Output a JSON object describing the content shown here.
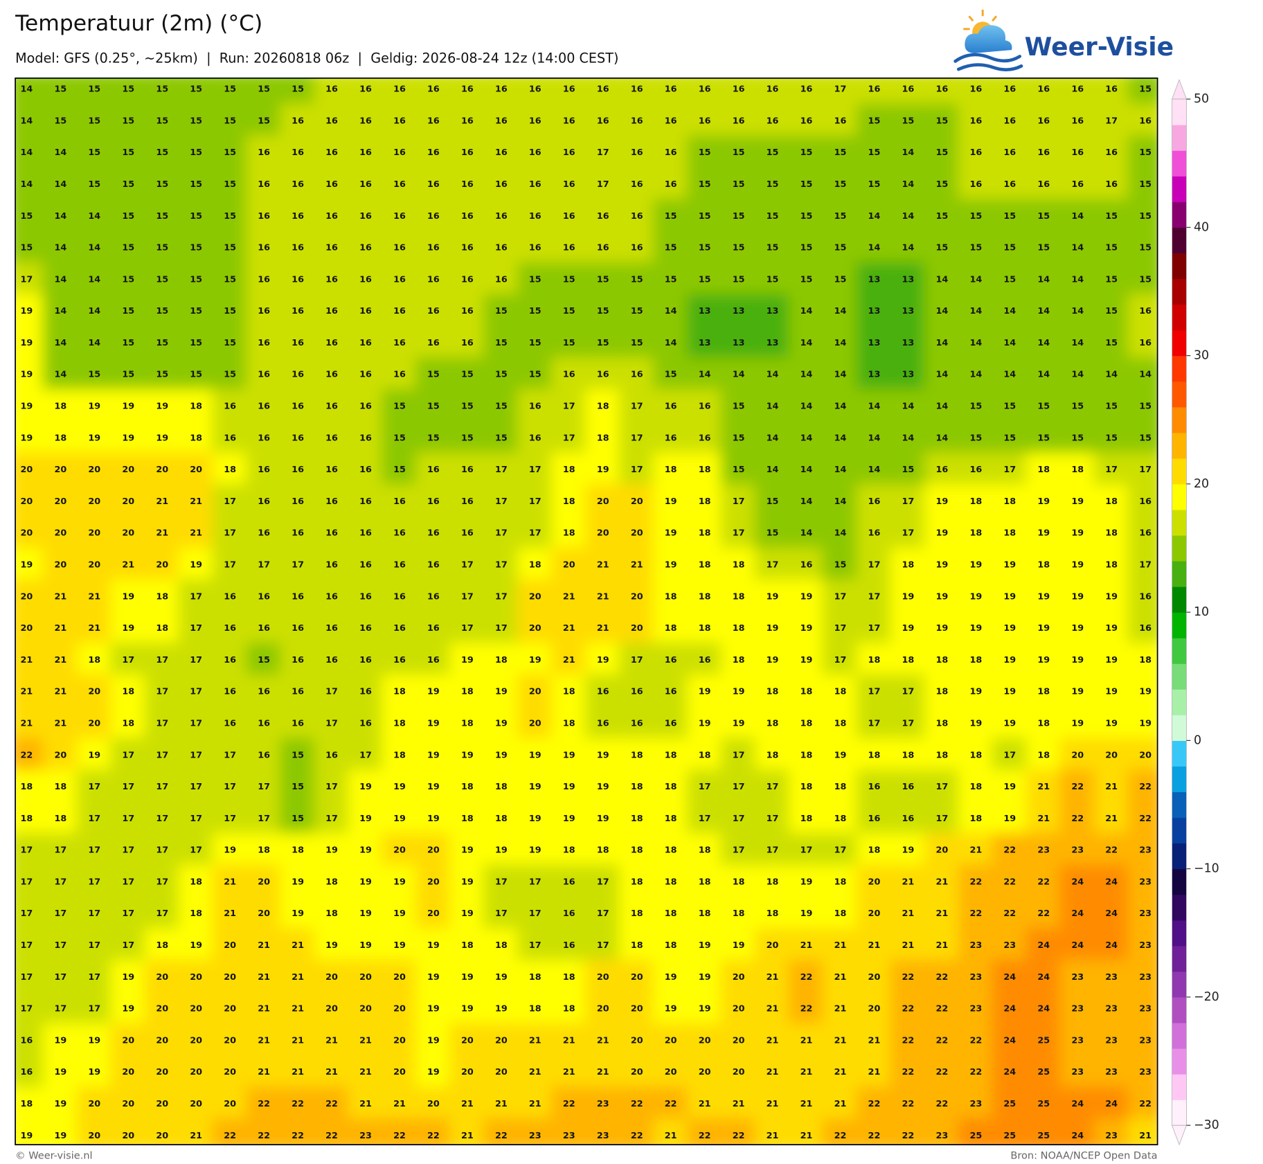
{
  "header": {
    "title": "Temperatuur (2m) (°C)",
    "subtitle": "Model: GFS (0.25°, ~25km)  |  Run: 20260818 06z  |  Geldig: 2026-08-24 12z (14:00 CEST)",
    "logo": "Weer-Visie"
  },
  "map": {
    "rows": [
      [
        14,
        15,
        15,
        15,
        15,
        15,
        15,
        15,
        15,
        16,
        16,
        16,
        16,
        16,
        16,
        16,
        16,
        16,
        16,
        16,
        16,
        16,
        16,
        16,
        17,
        16,
        16,
        16,
        16,
        16,
        16,
        16,
        16,
        15
      ],
      [
        14,
        15,
        15,
        15,
        15,
        15,
        15,
        15,
        16,
        16,
        16,
        16,
        16,
        16,
        16,
        16,
        16,
        16,
        16,
        16,
        16,
        16,
        16,
        16,
        16,
        15,
        15,
        15,
        16,
        16,
        16,
        16,
        17,
        16
      ],
      [
        14,
        14,
        15,
        15,
        15,
        15,
        15,
        16,
        16,
        16,
        16,
        16,
        16,
        16,
        16,
        16,
        16,
        17,
        16,
        16,
        15,
        15,
        15,
        15,
        15,
        15,
        14,
        15,
        16,
        16,
        16,
        16,
        16,
        15
      ],
      [
        14,
        14,
        15,
        15,
        15,
        15,
        15,
        16,
        16,
        16,
        16,
        16,
        16,
        16,
        16,
        16,
        16,
        17,
        16,
        16,
        15,
        15,
        15,
        15,
        15,
        15,
        14,
        15,
        16,
        16,
        16,
        16,
        16,
        15
      ],
      [
        15,
        14,
        14,
        15,
        15,
        15,
        15,
        16,
        16,
        16,
        16,
        16,
        16,
        16,
        16,
        16,
        16,
        16,
        16,
        15,
        15,
        15,
        15,
        15,
        15,
        14,
        14,
        15,
        15,
        15,
        15,
        14,
        15,
        15
      ],
      [
        15,
        14,
        14,
        15,
        15,
        15,
        15,
        16,
        16,
        16,
        16,
        16,
        16,
        16,
        16,
        16,
        16,
        16,
        16,
        15,
        15,
        15,
        15,
        15,
        15,
        14,
        14,
        15,
        15,
        15,
        15,
        14,
        15,
        15
      ],
      [
        17,
        14,
        14,
        15,
        15,
        15,
        15,
        16,
        16,
        16,
        16,
        16,
        16,
        16,
        16,
        15,
        15,
        15,
        15,
        15,
        15,
        15,
        15,
        15,
        15,
        13,
        13,
        14,
        14,
        15,
        14,
        14,
        15,
        15
      ],
      [
        19,
        14,
        14,
        15,
        15,
        15,
        15,
        16,
        16,
        16,
        16,
        16,
        16,
        16,
        15,
        15,
        15,
        15,
        15,
        14,
        13,
        13,
        13,
        14,
        14,
        13,
        13,
        14,
        14,
        14,
        14,
        14,
        15,
        16
      ],
      [
        19,
        14,
        14,
        15,
        15,
        15,
        15,
        16,
        16,
        16,
        16,
        16,
        16,
        16,
        15,
        15,
        15,
        15,
        15,
        14,
        13,
        13,
        13,
        14,
        14,
        13,
        13,
        14,
        14,
        14,
        14,
        14,
        15,
        16
      ],
      [
        19,
        14,
        15,
        15,
        15,
        15,
        15,
        16,
        16,
        16,
        16,
        16,
        15,
        15,
        15,
        15,
        16,
        16,
        16,
        15,
        14,
        14,
        14,
        14,
        14,
        13,
        13,
        14,
        14,
        14,
        14,
        14,
        14,
        14
      ],
      [
        19,
        18,
        19,
        19,
        19,
        18,
        16,
        16,
        16,
        16,
        16,
        15,
        15,
        15,
        15,
        16,
        17,
        18,
        17,
        16,
        16,
        15,
        14,
        14,
        14,
        14,
        14,
        14,
        15,
        15,
        15,
        15,
        15,
        15
      ],
      [
        19,
        18,
        19,
        19,
        19,
        18,
        16,
        16,
        16,
        16,
        16,
        15,
        15,
        15,
        15,
        16,
        17,
        18,
        17,
        16,
        16,
        15,
        14,
        14,
        14,
        14,
        14,
        14,
        15,
        15,
        15,
        15,
        15,
        15
      ],
      [
        20,
        20,
        20,
        20,
        20,
        20,
        18,
        16,
        16,
        16,
        16,
        15,
        16,
        16,
        17,
        17,
        18,
        19,
        17,
        18,
        18,
        15,
        14,
        14,
        14,
        14,
        15,
        16,
        16,
        17,
        18,
        18,
        17,
        17
      ],
      [
        20,
        20,
        20,
        20,
        21,
        21,
        17,
        16,
        16,
        16,
        16,
        16,
        16,
        16,
        17,
        17,
        18,
        20,
        20,
        19,
        18,
        17,
        15,
        14,
        14,
        16,
        17,
        19,
        18,
        18,
        19,
        19,
        18,
        16
      ],
      [
        20,
        20,
        20,
        20,
        21,
        21,
        17,
        16,
        16,
        16,
        16,
        16,
        16,
        16,
        17,
        17,
        18,
        20,
        20,
        19,
        18,
        17,
        15,
        14,
        14,
        16,
        17,
        19,
        18,
        18,
        19,
        19,
        18,
        16
      ],
      [
        19,
        20,
        20,
        21,
        20,
        19,
        17,
        17,
        17,
        16,
        16,
        16,
        16,
        17,
        17,
        18,
        20,
        21,
        21,
        19,
        18,
        18,
        17,
        16,
        15,
        17,
        18,
        19,
        19,
        19,
        18,
        19,
        18,
        17
      ],
      [
        20,
        21,
        21,
        19,
        18,
        17,
        16,
        16,
        16,
        16,
        16,
        16,
        16,
        17,
        17,
        20,
        21,
        21,
        20,
        18,
        18,
        18,
        19,
        19,
        17,
        17,
        19,
        19,
        19,
        19,
        19,
        19,
        19,
        16
      ],
      [
        20,
        21,
        21,
        19,
        18,
        17,
        16,
        16,
        16,
        16,
        16,
        16,
        16,
        17,
        17,
        20,
        21,
        21,
        20,
        18,
        18,
        18,
        19,
        19,
        17,
        17,
        19,
        19,
        19,
        19,
        19,
        19,
        19,
        16
      ],
      [
        21,
        21,
        18,
        17,
        17,
        17,
        16,
        15,
        16,
        16,
        16,
        16,
        16,
        19,
        18,
        19,
        21,
        19,
        17,
        16,
        16,
        18,
        19,
        19,
        17,
        18,
        18,
        18,
        18,
        19,
        19,
        19,
        19,
        18
      ],
      [
        21,
        21,
        20,
        18,
        17,
        17,
        16,
        16,
        16,
        17,
        16,
        18,
        19,
        18,
        19,
        20,
        18,
        16,
        16,
        16,
        19,
        19,
        18,
        18,
        18,
        17,
        17,
        18,
        19,
        19,
        18,
        19,
        19,
        19
      ],
      [
        21,
        21,
        20,
        18,
        17,
        17,
        16,
        16,
        16,
        17,
        16,
        18,
        19,
        18,
        19,
        20,
        18,
        16,
        16,
        16,
        19,
        19,
        18,
        18,
        18,
        17,
        17,
        18,
        19,
        19,
        18,
        19,
        19,
        19
      ],
      [
        22,
        20,
        19,
        17,
        17,
        17,
        17,
        16,
        15,
        16,
        17,
        18,
        19,
        19,
        19,
        19,
        19,
        19,
        18,
        18,
        18,
        17,
        18,
        18,
        19,
        18,
        18,
        18,
        18,
        17,
        18,
        20,
        20,
        20
      ],
      [
        18,
        18,
        17,
        17,
        17,
        17,
        17,
        17,
        15,
        17,
        19,
        19,
        19,
        18,
        18,
        19,
        19,
        19,
        18,
        18,
        17,
        17,
        17,
        18,
        18,
        16,
        16,
        17,
        18,
        19,
        21,
        22,
        21,
        22
      ],
      [
        18,
        18,
        17,
        17,
        17,
        17,
        17,
        17,
        15,
        17,
        19,
        19,
        19,
        18,
        18,
        19,
        19,
        19,
        18,
        18,
        17,
        17,
        17,
        18,
        18,
        16,
        16,
        17,
        18,
        19,
        21,
        22,
        21,
        22
      ],
      [
        17,
        17,
        17,
        17,
        17,
        17,
        19,
        18,
        18,
        19,
        19,
        20,
        20,
        19,
        19,
        19,
        18,
        18,
        18,
        18,
        18,
        17,
        17,
        17,
        17,
        18,
        19,
        20,
        21,
        22,
        23,
        23,
        22,
        23
      ],
      [
        17,
        17,
        17,
        17,
        17,
        18,
        21,
        20,
        19,
        18,
        19,
        19,
        20,
        19,
        17,
        17,
        16,
        17,
        18,
        18,
        18,
        18,
        18,
        19,
        18,
        20,
        21,
        21,
        22,
        22,
        22,
        24,
        24,
        23
      ],
      [
        17,
        17,
        17,
        17,
        17,
        18,
        21,
        20,
        19,
        18,
        19,
        19,
        20,
        19,
        17,
        17,
        16,
        17,
        18,
        18,
        18,
        18,
        18,
        19,
        18,
        20,
        21,
        21,
        22,
        22,
        22,
        24,
        24,
        23
      ],
      [
        17,
        17,
        17,
        17,
        18,
        19,
        20,
        21,
        21,
        19,
        19,
        19,
        19,
        18,
        18,
        17,
        16,
        17,
        18,
        18,
        19,
        19,
        20,
        21,
        21,
        21,
        21,
        21,
        23,
        23,
        24,
        24,
        24,
        23
      ],
      [
        17,
        17,
        17,
        19,
        20,
        20,
        20,
        21,
        21,
        20,
        20,
        20,
        19,
        19,
        19,
        18,
        18,
        20,
        20,
        19,
        19,
        20,
        21,
        22,
        21,
        20,
        22,
        22,
        23,
        24,
        24,
        23,
        23,
        23
      ],
      [
        17,
        17,
        17,
        19,
        20,
        20,
        20,
        21,
        21,
        20,
        20,
        20,
        19,
        19,
        19,
        18,
        18,
        20,
        20,
        19,
        19,
        20,
        21,
        22,
        21,
        20,
        22,
        22,
        23,
        24,
        24,
        23,
        23,
        23
      ],
      [
        16,
        19,
        19,
        20,
        20,
        20,
        20,
        21,
        21,
        21,
        21,
        20,
        19,
        20,
        20,
        21,
        21,
        21,
        20,
        20,
        20,
        20,
        21,
        21,
        21,
        21,
        22,
        22,
        22,
        24,
        25,
        23,
        23,
        23
      ],
      [
        16,
        19,
        19,
        20,
        20,
        20,
        20,
        21,
        21,
        21,
        21,
        20,
        19,
        20,
        20,
        21,
        21,
        21,
        20,
        20,
        20,
        20,
        21,
        21,
        21,
        21,
        22,
        22,
        22,
        24,
        25,
        23,
        23,
        23
      ],
      [
        18,
        19,
        20,
        20,
        20,
        20,
        20,
        22,
        22,
        22,
        21,
        21,
        20,
        21,
        21,
        21,
        22,
        23,
        22,
        22,
        21,
        21,
        21,
        21,
        21,
        22,
        22,
        22,
        23,
        25,
        25,
        24,
        24,
        22
      ],
      [
        19,
        19,
        20,
        20,
        20,
        21,
        22,
        22,
        22,
        22,
        23,
        22,
        22,
        21,
        22,
        23,
        23,
        23,
        22,
        21,
        22,
        22,
        21,
        21,
        22,
        22,
        22,
        23,
        25,
        25,
        25,
        24,
        23,
        21
      ]
    ],
    "colorbar": {
      "lim": [
        -30,
        50
      ],
      "ticks": [
        50,
        40,
        30,
        20,
        10,
        0,
        {
          "value": -10,
          "label": "−10"
        },
        {
          "value": -20,
          "label": "−20"
        },
        {
          "value": -30,
          "label": "−30"
        }
      ],
      "colors": [
        "#fff0fc",
        "#ffc8f4",
        "#e890e8",
        "#d070d8",
        "#b050c0",
        "#9038b0",
        "#702098",
        "#501088",
        "#300860",
        "#140440",
        "#082078",
        "#0840a0",
        "#0860b8",
        "#08a0e0",
        "#38c8f8",
        "#d0fad8",
        "#a8f0a8",
        "#78dc78",
        "#40c840",
        "#00b400",
        "#008800",
        "#48b010",
        "#8cc800",
        "#cce000",
        "#ffff00",
        "#ffdc00",
        "#ffb400",
        "#ff8c00",
        "#ff5800",
        "#ff3800",
        "#f00000",
        "#d00000",
        "#a80000",
        "#800000",
        "#500030",
        "#880070",
        "#c800b8",
        "#f050d8",
        "#f8a8e0",
        "#ffe0f4"
      ]
    }
  },
  "footer": {
    "left": "© Weer-visie.nl",
    "right": "Bron: NOAA/NCEP Open Data"
  }
}
